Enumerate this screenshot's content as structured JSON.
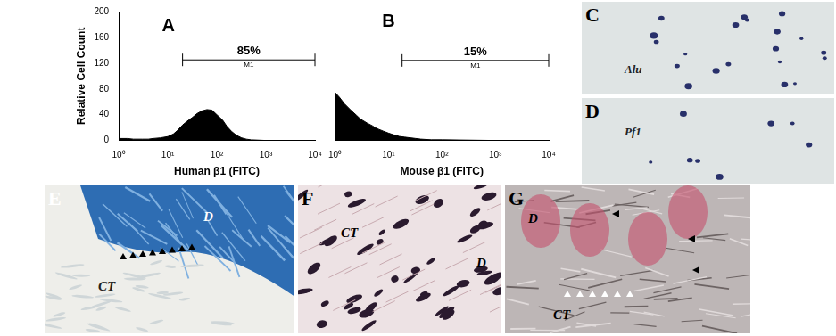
{
  "chart_data": [
    {
      "type": "histogram",
      "title": "A",
      "x_label": "Human β1 (FITC)",
      "y_label": "Relative Cell Count",
      "x": [
        1,
        1.5,
        2,
        3,
        4,
        5,
        7,
        10,
        13,
        16,
        20,
        25,
        32,
        40,
        50,
        63,
        80,
        100,
        130,
        160,
        200,
        250,
        320,
        400,
        500,
        1000,
        10000
      ],
      "values": [
        3,
        3,
        2,
        2,
        2,
        3,
        4,
        6,
        10,
        16,
        24,
        30,
        36,
        42,
        46,
        48,
        47,
        40,
        32,
        22,
        14,
        8,
        4,
        2,
        1,
        0,
        0
      ],
      "color": "#000000",
      "log": "x",
      "grid": false,
      "xlim": [
        1,
        10000
      ],
      "xticks": [
        {
          "value": 1,
          "label": "10⁰"
        },
        {
          "value": 10,
          "label": "10¹"
        },
        {
          "value": 100,
          "label": "10²"
        },
        {
          "value": 1000,
          "label": "10³"
        },
        {
          "value": 10000,
          "label": "10⁴"
        }
      ],
      "ylim": [
        0,
        200
      ],
      "yticks": [
        0,
        40,
        80,
        120,
        160,
        200
      ],
      "gate": {
        "name": "M1",
        "range": [
          20,
          10000
        ],
        "y": 125,
        "value": 85,
        "value_label": "85%"
      }
    },
    {
      "type": "histogram",
      "title": "B",
      "x_label": "Mouse β1 (FITC)",
      "x": [
        1,
        1.2,
        1.5,
        2,
        2.5,
        3,
        4,
        5,
        6,
        8,
        10,
        13,
        16,
        20,
        25,
        32,
        40,
        63,
        100,
        1000,
        10000
      ],
      "values": [
        72,
        65,
        55,
        45,
        38,
        32,
        26,
        22,
        18,
        14,
        11,
        8,
        6,
        5,
        4,
        3,
        2,
        1,
        1,
        0,
        0
      ],
      "color": "#000000",
      "log": "x",
      "grid": false,
      "tick_labels": "x",
      "xlim": [
        1,
        10000
      ],
      "xticks": [
        {
          "value": 1,
          "label": "10⁰"
        },
        {
          "value": 10,
          "label": "10¹"
        },
        {
          "value": 100,
          "label": "10²"
        },
        {
          "value": 1000,
          "label": "10³"
        },
        {
          "value": 10000,
          "label": "10⁴"
        }
      ],
      "ylim": [
        0,
        200
      ],
      "yticks": [
        0,
        40,
        80,
        120,
        160,
        200
      ],
      "gate": {
        "name": "M1",
        "range": [
          18,
          10000
        ],
        "y": 120,
        "value": 15,
        "value_label": "15%"
      }
    }
  ],
  "image_panels": [
    {
      "label": "C",
      "annotations": [
        "Alu"
      ]
    },
    {
      "label": "D",
      "annotations": [
        "Pf1"
      ]
    },
    {
      "label": "E",
      "annotations": [
        "D",
        "CT"
      ]
    },
    {
      "label": "F",
      "annotations": [
        "D",
        "CT"
      ]
    },
    {
      "label": "G",
      "annotations": [
        "D",
        "CT"
      ]
    }
  ]
}
